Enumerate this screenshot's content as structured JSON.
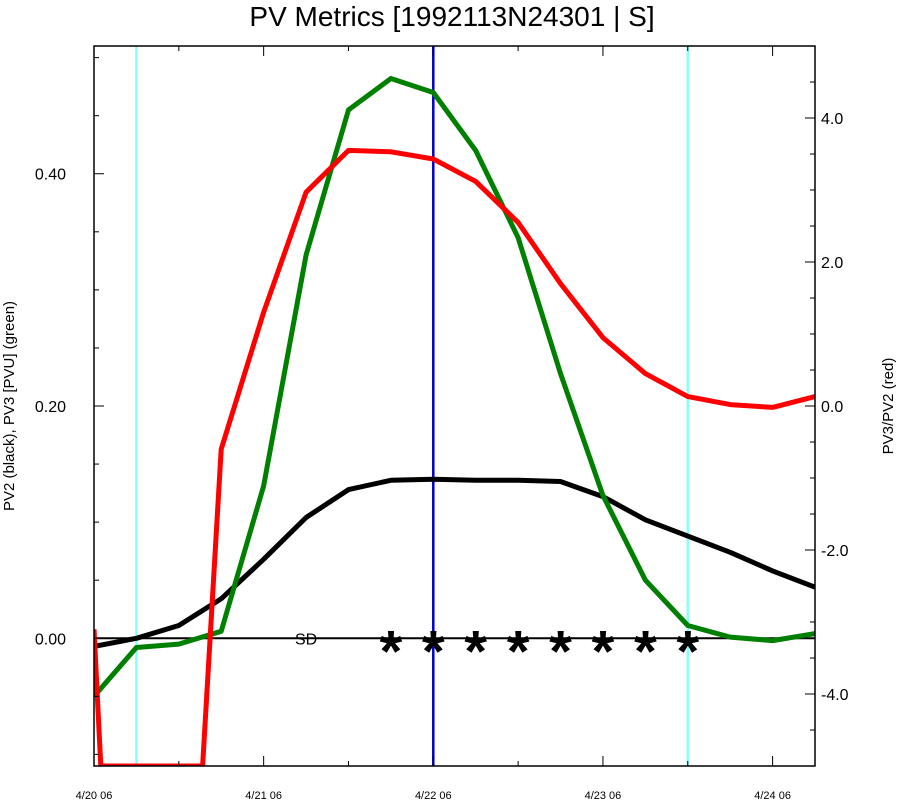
{
  "chart_data": {
    "type": "line",
    "title": "PV Metrics [1992113N24301 | S]",
    "ylabel_left": "PV2 (black), PV3 [PVU] (green)",
    "ylabel_right": "PV3/PV2 (red)",
    "x_tick_labels": [
      "4/20 06",
      "4/21 06",
      "4/22 06",
      "4/23 06",
      "4/24 06"
    ],
    "x_tick_days": [
      0,
      1,
      2,
      3,
      4
    ],
    "xlim_days": [
      0,
      4.25
    ],
    "left_axis": {
      "ylim": [
        -0.11,
        0.51
      ],
      "ticks": [
        0.0,
        0.2,
        0.4
      ],
      "tick_labels": [
        "0.00",
        "0.20",
        "0.40"
      ]
    },
    "right_axis": {
      "ylim": [
        -5.0,
        5.0
      ],
      "ticks": [
        -4.0,
        -2.0,
        0.0,
        2.0,
        4.0
      ],
      "tick_labels": [
        "-4.0",
        "-2.0",
        "0.0",
        "2.0",
        "4.0"
      ]
    },
    "series": [
      {
        "axis": "left",
        "color": "#000000",
        "x": [
          0,
          0.25,
          0.5,
          0.75,
          1.0,
          1.25,
          1.5,
          1.75,
          2.0,
          2.25,
          2.5,
          2.75,
          3.0,
          3.25,
          3.5,
          3.75,
          4.0,
          4.25
        ],
        "values": [
          -0.007,
          0.0,
          0.011,
          0.034,
          0.068,
          0.104,
          0.128,
          0.136,
          0.137,
          0.136,
          0.136,
          0.135,
          0.122,
          0.102,
          0.088,
          0.074,
          0.058,
          0.044
        ]
      },
      {
        "axis": "left",
        "color": "#008000",
        "x": [
          0,
          0.25,
          0.5,
          0.75,
          1.0,
          1.25,
          1.5,
          1.75,
          2.0,
          2.25,
          2.5,
          2.75,
          3.0,
          3.25,
          3.5,
          3.75,
          4.0,
          4.25
        ],
        "values": [
          -0.05,
          -0.008,
          -0.005,
          0.006,
          0.131,
          0.33,
          0.455,
          0.482,
          0.47,
          0.42,
          0.345,
          0.228,
          0.123,
          0.05,
          0.011,
          0.001,
          -0.002,
          0.004
        ]
      },
      {
        "axis": "right",
        "color": "#ff0000",
        "x": [
          0,
          0.04,
          0.64,
          0.75,
          1.0,
          1.25,
          1.5,
          1.75,
          2.0,
          2.25,
          2.5,
          2.75,
          3.0,
          3.25,
          3.5,
          3.75,
          4.0,
          4.25
        ],
        "values": [
          -3.1,
          -5.0,
          -5.0,
          -0.6,
          1.3,
          2.97,
          3.55,
          3.53,
          3.43,
          3.12,
          2.55,
          1.7,
          0.95,
          0.45,
          0.13,
          0.02,
          -0.02,
          0.13
        ]
      }
    ],
    "vertical_lines": [
      {
        "x": 0.25,
        "color": "#88ffff"
      },
      {
        "x": 2.0,
        "color": "#0000cc"
      },
      {
        "x": 3.5,
        "color": "#88ffff"
      }
    ],
    "zero_line": true,
    "annotations": [
      {
        "text": "SD",
        "x": 1.25,
        "y": 0.0
      }
    ],
    "star_marker": "*",
    "star_markers_x": [
      1.75,
      2.0,
      2.25,
      2.5,
      2.75,
      3.0,
      3.25,
      3.5
    ],
    "grid": false
  }
}
